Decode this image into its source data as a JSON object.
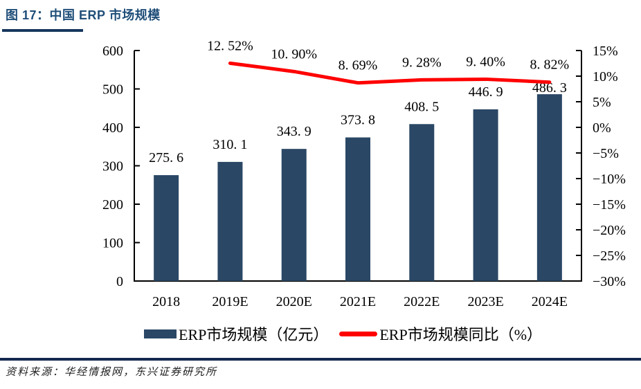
{
  "page": {
    "title": "图 17：中国 ERP 市场规模",
    "source": "资料来源：华经情报网，东兴证券研究所"
  },
  "colors": {
    "title": "#1F4E79",
    "rule": "#17375D",
    "bar": "#2A4765",
    "line": "#FF0000",
    "axis": "#000000",
    "text": "#000000"
  },
  "chart_data": {
    "type": "bar",
    "title": "中国 ERP 市场规模",
    "categories": [
      "2018",
      "2019E",
      "2020E",
      "2021E",
      "2022E",
      "2023E",
      "2024E"
    ],
    "series": [
      {
        "name": "ERP市场规模（亿元）",
        "type": "bar",
        "axis": "left",
        "values": [
          275.6,
          310.1,
          343.9,
          373.8,
          408.5,
          446.9,
          486.3
        ],
        "labels": [
          "275. 6",
          "310. 1",
          "343. 9",
          "373. 8",
          "408. 5",
          "446. 9",
          "486. 3"
        ]
      },
      {
        "name": "ERP市场规模同比（%）",
        "type": "line",
        "axis": "right",
        "values": [
          null,
          12.52,
          10.9,
          8.69,
          9.28,
          9.4,
          8.82
        ],
        "labels": [
          "",
          "12. 52%",
          "10. 90%",
          "8. 69%",
          "9. 28%",
          "9. 40%",
          "8. 82%"
        ]
      }
    ],
    "left_axis": {
      "min": 0,
      "max": 600,
      "step": 100,
      "ticks": [
        "600",
        "500",
        "400",
        "300",
        "200",
        "100",
        "0"
      ]
    },
    "right_axis": {
      "min": -30,
      "max": 15,
      "step": 5,
      "ticks": [
        "15%",
        "10%",
        "5%",
        "0%",
        "−5%",
        "−10%",
        "−15%",
        "−20%",
        "−25%",
        "−30%"
      ]
    },
    "grid": false,
    "legend_position": "bottom"
  }
}
